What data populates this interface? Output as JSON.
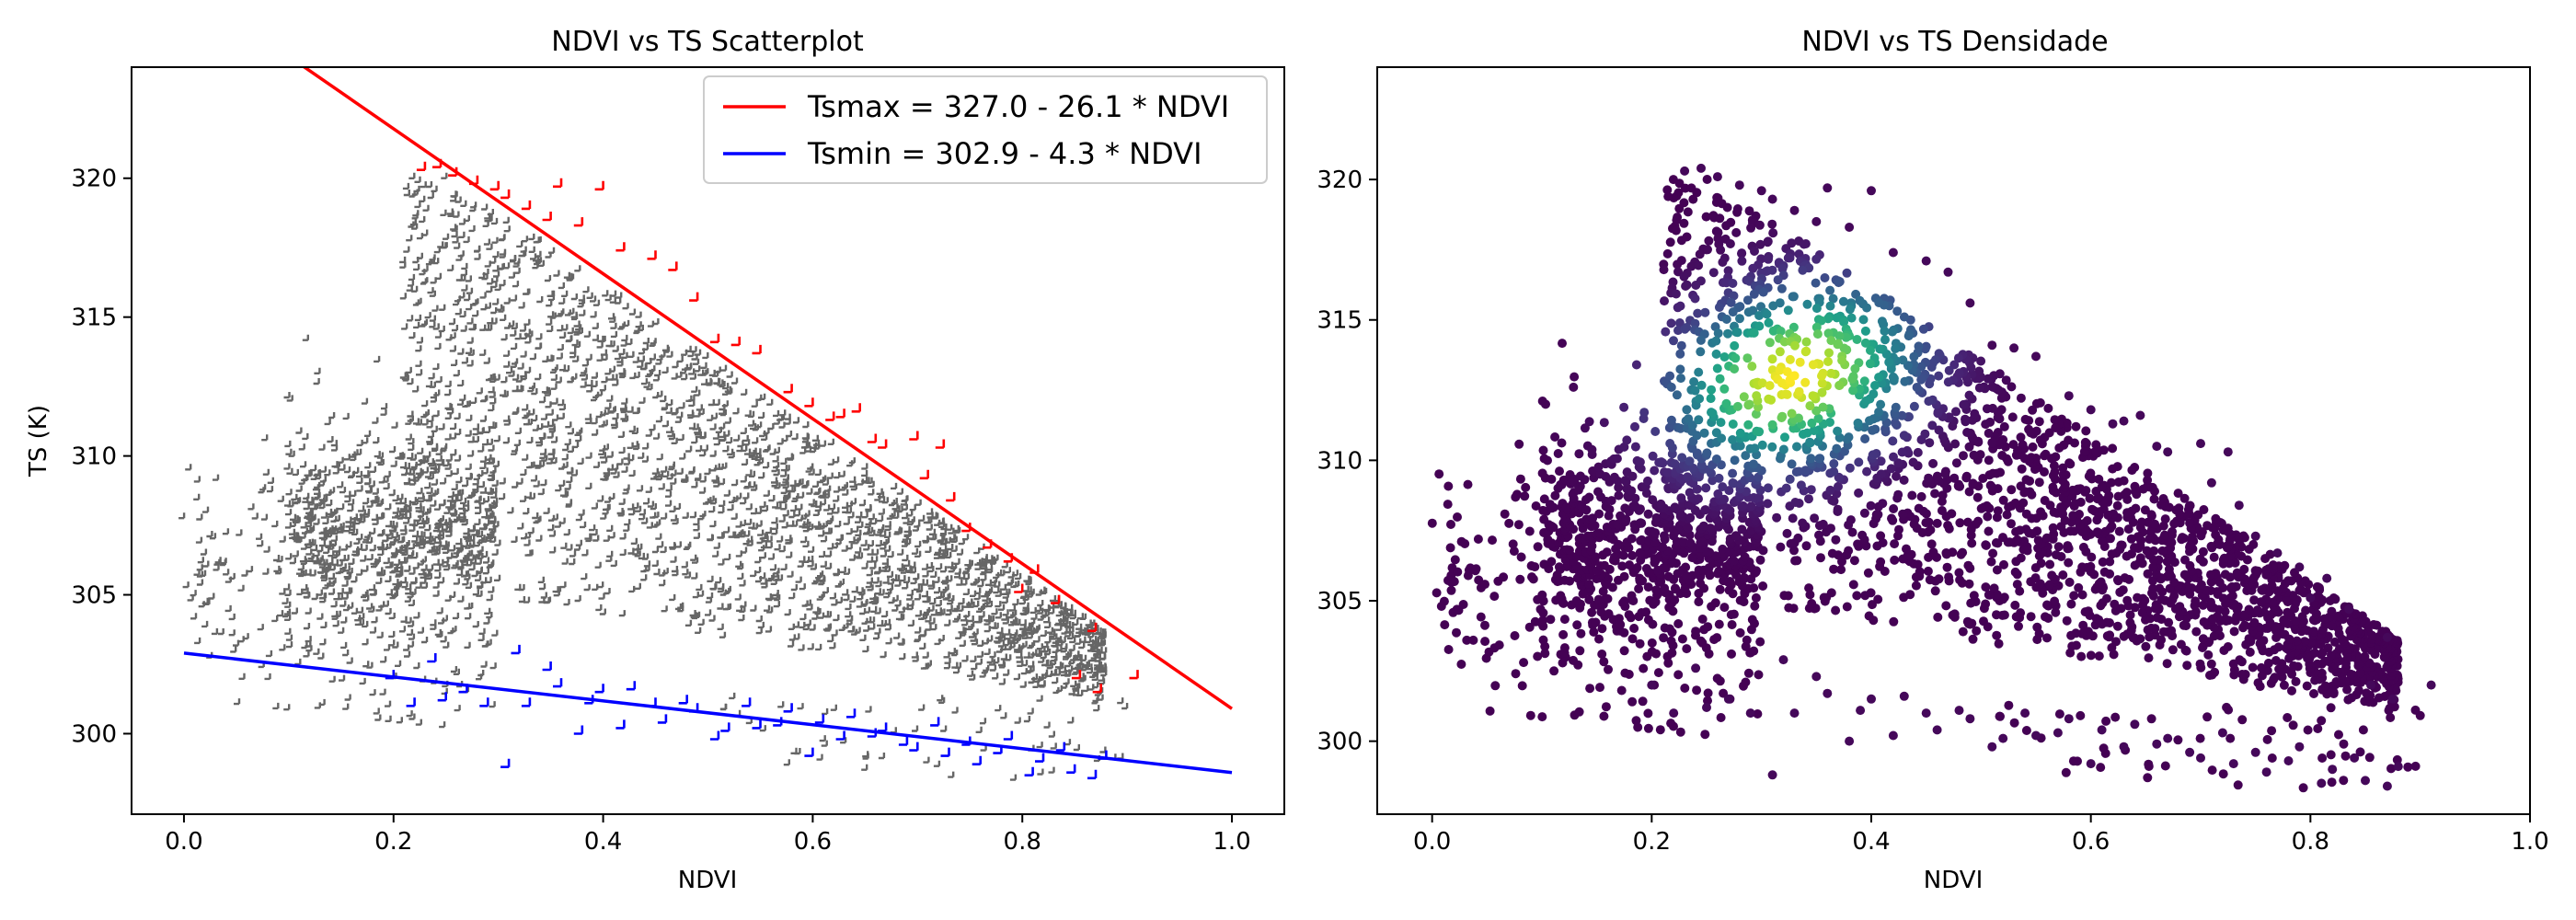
{
  "chart_data": [
    {
      "type": "scatter",
      "title": "NDVI vs TS Scatterplot",
      "xlabel": "NDVI",
      "ylabel": "TS (K)",
      "xlim": [
        -0.05,
        1.05
      ],
      "ylim": [
        297.1,
        324.0
      ],
      "xticks": [
        0.0,
        0.2,
        0.4,
        0.6,
        0.8,
        1.0
      ],
      "yticks": [
        300,
        305,
        310,
        315,
        320
      ],
      "grid": false,
      "legend_position": "top-right",
      "marker": "plus",
      "series": [
        {
          "name": "Tsmax = 327.0 - 26.1 * NDVI",
          "kind": "line",
          "color": "#ff0000",
          "x": [
            0.0,
            1.0
          ],
          "y": [
            327.0,
            300.9
          ]
        },
        {
          "name": "Tsmin = 302.9 - 4.3 * NDVI",
          "kind": "line",
          "color": "#0000ff",
          "x": [
            0.0,
            1.0
          ],
          "y": [
            302.9,
            298.6
          ]
        },
        {
          "kind": "points",
          "role": "dry edge points",
          "color": "#ff0000",
          "x": [
            0.23,
            0.245,
            0.26,
            0.28,
            0.3,
            0.31,
            0.33,
            0.35,
            0.36,
            0.38,
            0.4,
            0.42,
            0.45,
            0.47,
            0.49,
            0.51,
            0.53,
            0.55,
            0.58,
            0.6,
            0.62,
            0.63,
            0.645,
            0.66,
            0.67,
            0.7,
            0.71,
            0.725,
            0.735,
            0.75,
            0.77,
            0.79,
            0.8,
            0.815,
            0.835,
            0.855,
            0.87,
            0.875,
            0.91
          ],
          "y": [
            320.3,
            320.4,
            320.1,
            319.8,
            319.6,
            319.3,
            318.9,
            318.5,
            319.7,
            318.3,
            319.6,
            317.4,
            317.1,
            316.7,
            315.6,
            314.1,
            314.0,
            313.7,
            312.3,
            311.8,
            311.3,
            311.4,
            311.6,
            310.5,
            310.3,
            310.6,
            309.2,
            310.3,
            308.4,
            307.3,
            306.7,
            306.2,
            305.1,
            305.8,
            304.7,
            302.0,
            303.7,
            301.5,
            302.0
          ]
        },
        {
          "kind": "points",
          "role": "wet edge points",
          "color": "#0000ff",
          "x": [
            0.2,
            0.22,
            0.24,
            0.25,
            0.27,
            0.29,
            0.31,
            0.32,
            0.33,
            0.35,
            0.36,
            0.38,
            0.39,
            0.4,
            0.42,
            0.43,
            0.45,
            0.46,
            0.48,
            0.49,
            0.51,
            0.52,
            0.54,
            0.55,
            0.57,
            0.58,
            0.6,
            0.61,
            0.63,
            0.64,
            0.66,
            0.67,
            0.69,
            0.7,
            0.72,
            0.73,
            0.75,
            0.76,
            0.78,
            0.79,
            0.81,
            0.82,
            0.84,
            0.85,
            0.87,
            0.88
          ],
          "y": [
            302.0,
            301.0,
            302.6,
            301.2,
            301.5,
            301.0,
            298.8,
            302.9,
            301.0,
            302.3,
            301.7,
            300.0,
            301.1,
            301.5,
            300.2,
            301.6,
            301.0,
            300.4,
            301.1,
            300.8,
            299.8,
            300.1,
            301.0,
            300.2,
            300.3,
            300.8,
            299.2,
            300.4,
            299.8,
            300.6,
            299.9,
            300.1,
            299.6,
            299.4,
            300.3,
            299.2,
            299.6,
            298.9,
            299.3,
            299.8,
            298.5,
            299.0,
            299.4,
            298.6,
            298.4,
            299.1
          ]
        }
      ],
      "annotation": "approximately 3,000 gray '+' samples spanning NDVI 0.0–0.88 and TS 298.3–320.3 K; dense band between the two edge lines"
    },
    {
      "type": "scatter",
      "title": "NDVI vs TS Densidade",
      "xlabel": "NDVI",
      "ylabel": "",
      "xlim": [
        -0.05,
        1.0
      ],
      "ylim": [
        297.4,
        324.0
      ],
      "xticks": [
        0.0,
        0.2,
        0.4,
        0.6,
        0.8,
        1.0
      ],
      "yticks": [
        300,
        305,
        310,
        315,
        320
      ],
      "grid": false,
      "marker": "dot",
      "colormap": "viridis",
      "density_peak": {
        "x": 0.33,
        "y": 313.0
      },
      "annotation": "same samples colored by point density (dark purple = low, yellow = high)"
    }
  ]
}
